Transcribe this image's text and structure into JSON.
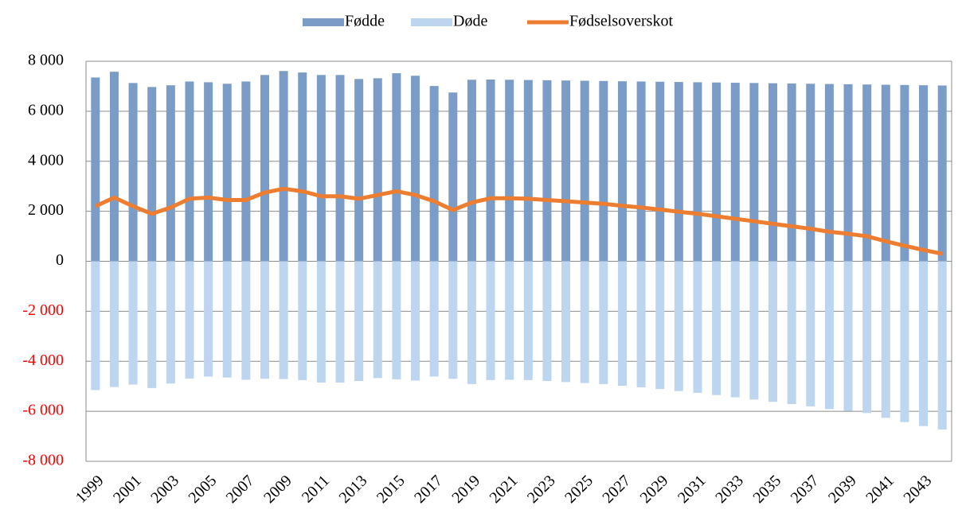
{
  "chart_data": {
    "type": "bar",
    "stacked": true,
    "legend": "top",
    "categories": [
      "1999",
      null,
      "2001",
      null,
      "2003",
      null,
      "2005",
      null,
      "2007",
      null,
      "2009",
      null,
      "2011",
      null,
      "2013",
      null,
      "2015",
      null,
      "2017",
      null,
      "2019",
      null,
      "2021",
      null,
      "2023",
      null,
      "2025",
      null,
      "2027",
      null,
      "2029",
      null,
      "2031",
      null,
      "2033",
      null,
      "2035",
      null,
      "2037",
      null,
      "2039",
      null,
      "2041",
      null,
      "2043",
      null
    ],
    "series": [
      {
        "name": "Fødde",
        "type": "bar",
        "color": "#7b9cc6",
        "values": [
          7350,
          7580,
          7130,
          6970,
          7040,
          7190,
          7160,
          7100,
          7190,
          7450,
          7610,
          7550,
          7450,
          7450,
          7290,
          7320,
          7520,
          7420,
          7010,
          6750,
          7260,
          7270,
          7260,
          7250,
          7240,
          7230,
          7220,
          7210,
          7200,
          7190,
          7180,
          7170,
          7160,
          7150,
          7140,
          7130,
          7120,
          7110,
          7100,
          7090,
          7080,
          7070,
          7060,
          7050,
          7040,
          7030
        ]
      },
      {
        "name": "Døde",
        "type": "bar",
        "color": "#bdd5ee",
        "values": [
          -5150,
          -5030,
          -4930,
          -5070,
          -4890,
          -4690,
          -4610,
          -4650,
          -4740,
          -4700,
          -4710,
          -4750,
          -4850,
          -4850,
          -4790,
          -4670,
          -4720,
          -4770,
          -4610,
          -4700,
          -4910,
          -4750,
          -4740,
          -4750,
          -4790,
          -4830,
          -4870,
          -4910,
          -4980,
          -5040,
          -5110,
          -5190,
          -5260,
          -5350,
          -5440,
          -5530,
          -5620,
          -5710,
          -5800,
          -5910,
          -5980,
          -6070,
          -6260,
          -6430,
          -6590,
          -6730
        ]
      },
      {
        "name": "Fødselsoverskot",
        "type": "line",
        "color": "#ed7d31",
        "values": [
          2200,
          2550,
          2200,
          1900,
          2150,
          2500,
          2550,
          2450,
          2450,
          2750,
          2900,
          2800,
          2600,
          2600,
          2500,
          2650,
          2800,
          2650,
          2400,
          2050,
          2350,
          2520,
          2520,
          2500,
          2450,
          2400,
          2350,
          2300,
          2220,
          2150,
          2070,
          1980,
          1900,
          1800,
          1700,
          1600,
          1500,
          1400,
          1300,
          1180,
          1100,
          1000,
          800,
          620,
          450,
          300
        ]
      }
    ],
    "ylim": [
      -8000,
      8000
    ],
    "yticks": [
      {
        "value": -8000,
        "label": "-8 000"
      },
      {
        "value": -6000,
        "label": "-6 000"
      },
      {
        "value": -4000,
        "label": "-4 000"
      },
      {
        "value": -2000,
        "label": "-2 000"
      },
      0,
      {
        "value": 2000,
        "label": "2 000"
      },
      {
        "value": 4000,
        "label": "4 000"
      },
      {
        "value": 6000,
        "label": "6 000"
      },
      {
        "value": 8000,
        "label": "8 000"
      }
    ],
    "grid": true
  }
}
